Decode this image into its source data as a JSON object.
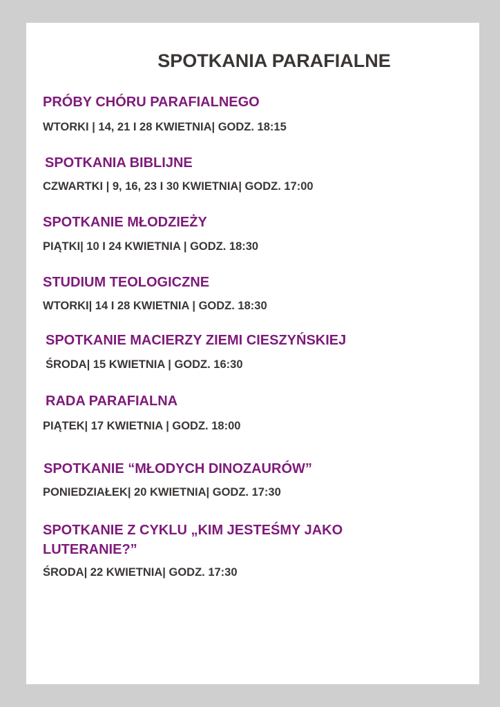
{
  "title": "SPOTKANIA PARAFIALNE",
  "colors": {
    "heading": "#7e1a7a",
    "text": "#3a3634",
    "background": "#cfcfcf",
    "card": "#ffffff"
  },
  "events": [
    {
      "name": "PRÓBY CHÓRU PARAFIALNEGO",
      "details": "WTORKI | 14, 21 I 28 KWIETNIA| GODZ. 18:15"
    },
    {
      "name": "SPOTKANIA BIBLIJNE",
      "details": "CZWARTKI | 9, 16, 23 I 30 KWIETNIA| GODZ. 17:00"
    },
    {
      "name": "SPOTKANIE MŁODZIEŻY",
      "details": "PIĄTKI| 10 I 24 KWIETNIA | GODZ. 18:30"
    },
    {
      "name": "STUDIUM TEOLOGICZNE",
      "details": "WTORKI| 14 I 28 KWIETNIA | GODZ. 18:30"
    },
    {
      "name": "SPOTKANIE MACIERZY ZIEMI CIESZYŃSKIEJ",
      "details": "ŚRODA| 15 KWIETNIA | GODZ. 16:30"
    },
    {
      "name": "RADA PARAFIALNA",
      "details": "PIĄTEK| 17 KWIETNIA | GODZ. 18:00"
    },
    {
      "name": "SPOTKANIE “MŁODYCH DINOZAURÓW”",
      "details": "PONIEDZIAŁEK| 20 KWIETNIA| GODZ. 17:30"
    },
    {
      "name_line1": "SPOTKANIE Z CYKLU „KIM JESTEŚMY JAKO",
      "name_line2": "LUTERANIE?”",
      "details": "ŚRODA| 22 KWIETNIA| GODZ. 17:30"
    }
  ]
}
